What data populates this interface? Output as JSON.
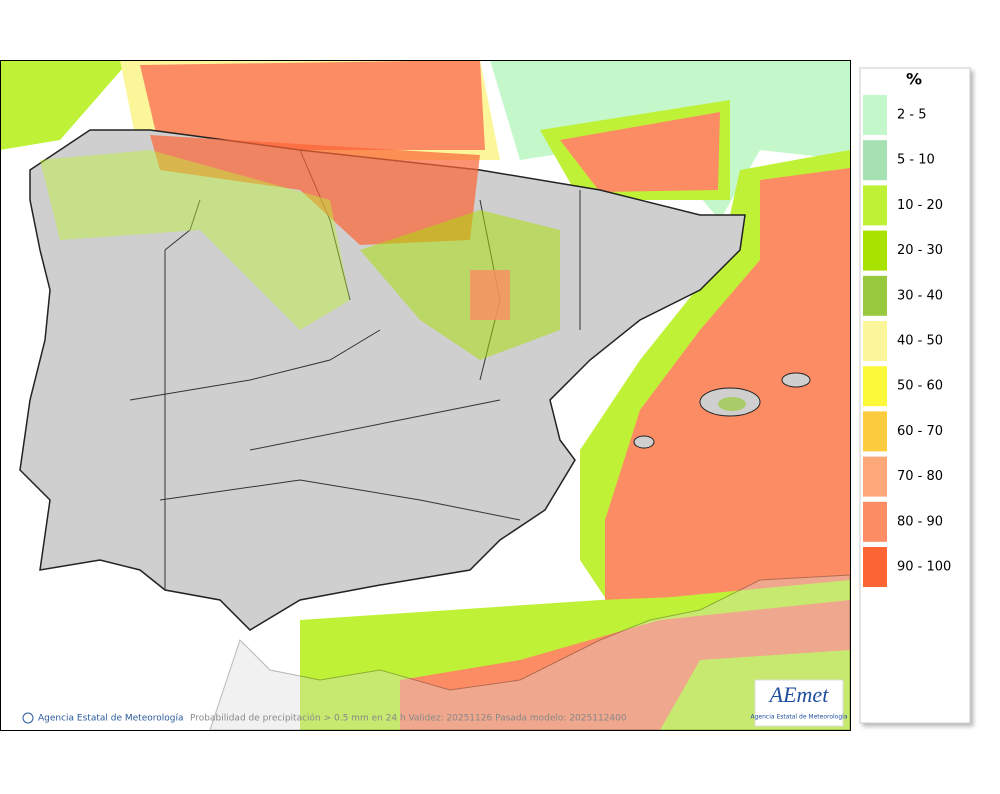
{
  "legend": {
    "title": "%",
    "items": [
      {
        "label": "2 - 5",
        "color": "#c4f7c9"
      },
      {
        "label": "5 - 10",
        "color": "#a6e1b4"
      },
      {
        "label": "10 - 20",
        "color": "#bff236"
      },
      {
        "label": "20 - 30",
        "color": "#a8e200"
      },
      {
        "label": "30 - 40",
        "color": "#98c93c"
      },
      {
        "label": "40 - 50",
        "color": "#fcf69a"
      },
      {
        "label": "50 - 60",
        "color": "#fcf83a"
      },
      {
        "label": "60 - 70",
        "color": "#fccc3e"
      },
      {
        "label": "70 - 80",
        "color": "#fca878"
      },
      {
        "label": "80 - 90",
        "color": "#fc8c64"
      },
      {
        "label": "90 - 100",
        "color": "#fc6434"
      }
    ]
  },
  "footer": {
    "credit": "Agencia Estatal de Meteorología",
    "caption": "Probabilidad de precipitación > 0.5 mm en 24 h Validez: 20251126 Pasada modelo: 2025112400"
  },
  "logo": {
    "name": "AEmet",
    "subtitle": "Agencia Estatal de Meteorología"
  }
}
